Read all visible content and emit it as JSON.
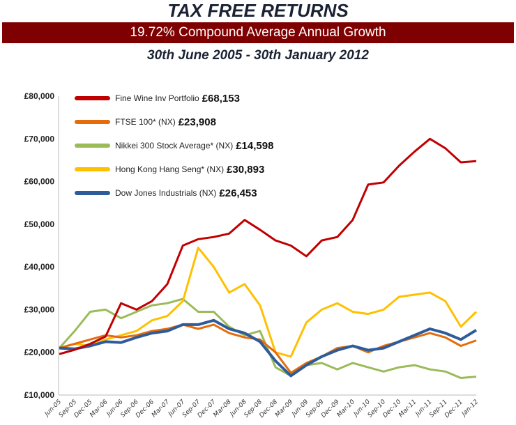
{
  "header": {
    "title": "TAX FREE RETURNS",
    "banner": "19.72% Compound Average Annual Growth",
    "subtitle": "30th June 2005 - 30th January 2012",
    "banner_color": "#7f0000"
  },
  "chart_data": {
    "type": "line",
    "title": "",
    "xlabel": "",
    "ylabel": "",
    "ylim": [
      10000,
      80000
    ],
    "yticks": [
      "£10,000",
      "£20,000",
      "£30,000",
      "£40,000",
      "£50,000",
      "£60,000",
      "£70,000",
      "£80,000"
    ],
    "ytick_values": [
      10000,
      20000,
      30000,
      40000,
      50000,
      60000,
      70000,
      80000
    ],
    "grid": false,
    "legend_position": "top-left",
    "categories": [
      "Jun-05",
      "Sep-05",
      "Dec-05",
      "Mar-06",
      "Jun-06",
      "Sep-06",
      "Dec-06",
      "Mar-07",
      "Jun-07",
      "Sep-07",
      "Dec-07",
      "Mar-08",
      "Jun-08",
      "Sep-08",
      "Dec-08",
      "Mar-09",
      "Jun-09",
      "Sep-09",
      "Dec-09",
      "Mar-10",
      "Jun-10",
      "Sep-10",
      "Dec-10",
      "Mar-11",
      "Jun-11",
      "Sep-11",
      "Dec-11",
      "Jan-12"
    ],
    "series": [
      {
        "name": "Fine Wine Inv Portfolio",
        "final_value": "£68,153",
        "color": "#c00000",
        "values": [
          19600,
          20600,
          22000,
          23700,
          31500,
          30000,
          32000,
          36000,
          45000,
          46500,
          47000,
          47800,
          51000,
          48700,
          46200,
          45000,
          42500,
          46200,
          47000,
          51000,
          59300,
          59800,
          63700,
          67000,
          70000,
          67800,
          64500,
          64800
        ]
      },
      {
        "name": "FTSE 100* (NX)",
        "final_value": "£23,908",
        "color": "#e46c0a",
        "values": [
          21000,
          22000,
          23000,
          24000,
          23500,
          24000,
          25000,
          25500,
          26500,
          25500,
          26500,
          24500,
          23500,
          23000,
          20000,
          15200,
          17500,
          19000,
          21000,
          21500,
          20000,
          21500,
          22500,
          23500,
          24500,
          23500,
          21500,
          22800
        ]
      },
      {
        "name": "Nikkei 300 Stock Average* (NX)",
        "final_value": "£14,598",
        "color": "#9bbb59",
        "values": [
          21000,
          25000,
          29500,
          30000,
          28000,
          29500,
          31000,
          31500,
          32500,
          29500,
          29500,
          26000,
          24000,
          25000,
          16500,
          14500,
          17000,
          17500,
          16000,
          17500,
          16500,
          15500,
          16500,
          17000,
          16000,
          15500,
          14000,
          14300
        ]
      },
      {
        "name": "Hong Kong Hang Seng* (NX)",
        "final_value": "£30,893",
        "color": "#ffc000",
        "values": [
          21000,
          22000,
          21500,
          23000,
          24000,
          25000,
          27500,
          28500,
          32000,
          44500,
          40000,
          34000,
          36000,
          31000,
          20000,
          19000,
          27000,
          30000,
          31500,
          29500,
          29000,
          30000,
          33000,
          33500,
          34000,
          32000,
          26000,
          29500
        ]
      },
      {
        "name": "Dow Jones Industrials (NX)",
        "final_value": "£26,453",
        "color": "#2e5c9a",
        "values": [
          21000,
          20800,
          21500,
          22500,
          22300,
          23500,
          24500,
          25000,
          26500,
          26500,
          27500,
          25500,
          24500,
          22500,
          18000,
          14500,
          17000,
          19000,
          20500,
          21500,
          20500,
          21000,
          22500,
          24000,
          25500,
          24500,
          23000,
          25200
        ]
      }
    ]
  }
}
